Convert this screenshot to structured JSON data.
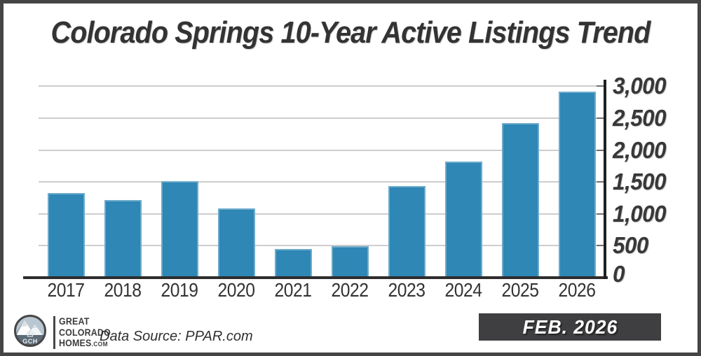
{
  "title": "Colorado Springs 10-Year Active Listings Trend",
  "chart_data": {
    "type": "bar",
    "title": "Colorado Springs 10-Year Active Listings Trend",
    "categories": [
      "2017",
      "2018",
      "2019",
      "2020",
      "2021",
      "2022",
      "2023",
      "2024",
      "2025",
      "2026"
    ],
    "values": [
      1330,
      1220,
      1510,
      1090,
      455,
      490,
      1440,
      1820,
      2420,
      2920
    ],
    "xlabel": "",
    "ylabel": "",
    "ylim": [
      0,
      3000
    ],
    "ytick_interval": 500,
    "ytick_labels": [
      "0",
      "500",
      "1,000",
      "1,500",
      "2,000",
      "2,500",
      "3,000"
    ],
    "legend": null,
    "grid": true,
    "axis_side": "right",
    "bar_color": "#2E87B5"
  },
  "footer": {
    "brand": {
      "monogram": "GCH",
      "line1": "Great",
      "line2": "Colorado",
      "line3": "Homes",
      "line3_suffix": ".com"
    },
    "data_source": "Data Source: PPAR.com",
    "badge": "FEB. 2026"
  },
  "colors": {
    "bar": "#2E87B5",
    "gridline": "#cdcdcd",
    "axis": "#2d2d2d",
    "frame_border": "#454545",
    "badge_bg": "#3F3F41",
    "badge_text": "#ffffff",
    "title_text": "#333333"
  }
}
